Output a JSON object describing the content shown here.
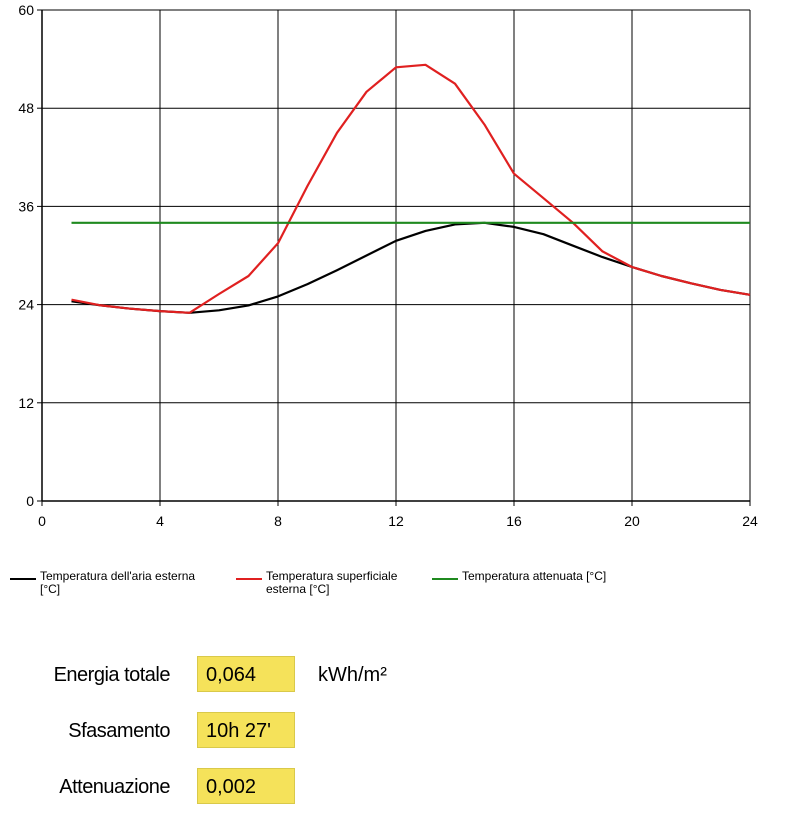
{
  "chart_data": {
    "type": "line",
    "xlim": [
      0,
      24
    ],
    "ylim": [
      0,
      60
    ],
    "x_ticks": [
      0,
      4,
      8,
      12,
      16,
      20,
      24
    ],
    "y_ticks": [
      0,
      12,
      24,
      36,
      48,
      60
    ],
    "grid": true,
    "series": [
      {
        "name": "Temperatura dell'aria esterna [°C]",
        "color": "#000000",
        "x": [
          1,
          2,
          3,
          4,
          5,
          6,
          7,
          8,
          9,
          10,
          11,
          12,
          13,
          14,
          15,
          16,
          17,
          18,
          19,
          20,
          21,
          22,
          23,
          24
        ],
        "values": [
          24.4,
          23.9,
          23.5,
          23.2,
          23.0,
          23.3,
          23.9,
          25.0,
          26.5,
          28.2,
          30.0,
          31.8,
          33.0,
          33.8,
          34.0,
          33.5,
          32.6,
          31.2,
          29.8,
          28.6,
          27.5,
          26.6,
          25.8,
          25.2
        ]
      },
      {
        "name": "Temperatura superficiale esterna [°C]",
        "color": "#e02020",
        "x": [
          1,
          2,
          3,
          4,
          5,
          6,
          7,
          8,
          9,
          10,
          11,
          12,
          13,
          14,
          15,
          16,
          17,
          18,
          19,
          20,
          21,
          22,
          23,
          24
        ],
        "values": [
          24.6,
          23.9,
          23.5,
          23.2,
          23.0,
          25.3,
          27.5,
          31.5,
          38.5,
          45.0,
          50.0,
          53.0,
          53.3,
          51.0,
          46.0,
          40.0,
          37.0,
          34.0,
          30.5,
          28.6,
          27.5,
          26.6,
          25.8,
          25.2
        ]
      },
      {
        "name": "Temperatura attenuata [°C]",
        "color": "#1f8a1f",
        "x": [
          1,
          24
        ],
        "values": [
          34.0,
          34.0
        ]
      }
    ]
  },
  "legend": [
    {
      "label_line1": "Temperatura dell'aria esterna",
      "label_line2": "[°C]",
      "color": "#000000"
    },
    {
      "label_line1": "Temperatura superficiale",
      "label_line2": "esterna [°C]",
      "color": "#e02020"
    },
    {
      "label_line1": "Temperatura attenuata [°C]",
      "label_line2": "",
      "color": "#1f8a1f"
    }
  ],
  "fields": {
    "energia": {
      "label": "Energia totale",
      "value": "0,064",
      "unit": "kWh/m²"
    },
    "sfasamento": {
      "label": "Sfasamento",
      "value": "10h 27'"
    },
    "attenuazione": {
      "label": "Attenuazione",
      "value": "0,002"
    }
  }
}
